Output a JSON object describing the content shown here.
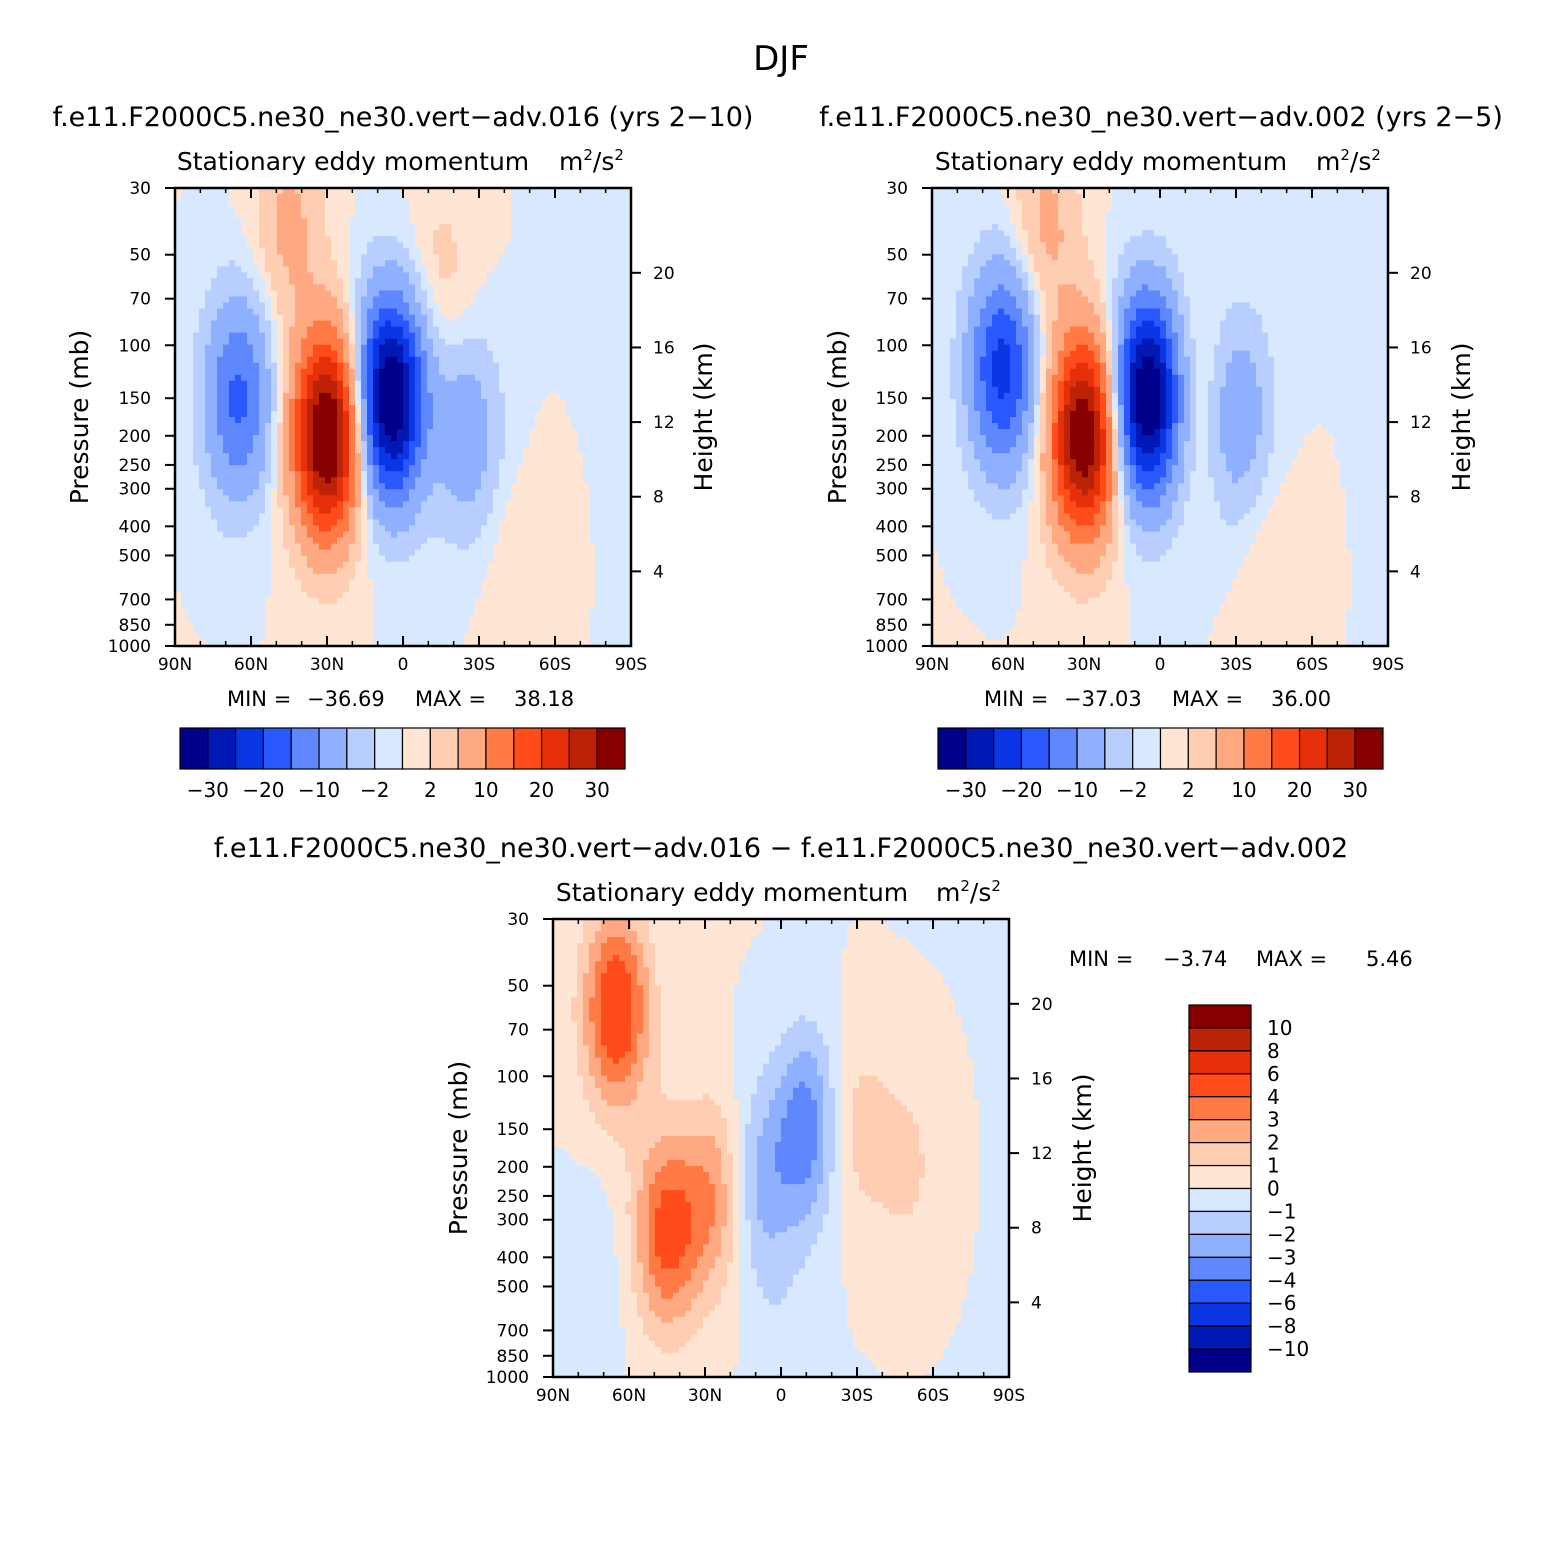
{
  "figure_title": "DJF",
  "chart_data": [
    {
      "type": "heatmap",
      "title": "f.e11.F2000C5.ne30_ne30.vert−adv.016 (yrs 2−10)",
      "subtitle": "Stationary eddy momentum",
      "units_base": "m",
      "units_mid": "/s",
      "units_exp": "2",
      "xlabel": "",
      "ylabel": "Pressure (mb)",
      "y2label": "Height (km)",
      "x_tick_labels": [
        "90N",
        "60N",
        "30N",
        "0",
        "30S",
        "60S",
        "90S"
      ],
      "y_tick_values": [
        30,
        50,
        70,
        100,
        150,
        200,
        250,
        300,
        400,
        500,
        700,
        850,
        1000
      ],
      "y2_tick_values": [
        20,
        16,
        12,
        8,
        4
      ],
      "y_scale": "log",
      "ylim": [
        1000,
        30
      ],
      "stats": {
        "min_label": "MIN =",
        "min_value": "−36.69",
        "max_label": "MAX =",
        "max_value": "38.18"
      },
      "colorbar": {
        "orientation": "horizontal",
        "labels": [
          "−30",
          "−20",
          "−10",
          "−2",
          "2",
          "10",
          "20",
          "30"
        ],
        "colors": [
          "#00008a",
          "#0018b4",
          "#0a36e6",
          "#2958ff",
          "#5f88ff",
          "#8fb0ff",
          "#b8ceff",
          "#d8e8ff",
          "#ffe6d4",
          "#ffcdb2",
          "#ffa982",
          "#ff7a45",
          "#ff4c1a",
          "#e6300a",
          "#bb2206",
          "#870000"
        ]
      },
      "features": [
        {
          "lat": -65,
          "p": 150,
          "v": -16
        },
        {
          "lat": -30,
          "p": 200,
          "v": 38
        },
        {
          "lat": -5,
          "p": 150,
          "v": -37
        },
        {
          "lat": 25,
          "p": 200,
          "v": -8
        },
        {
          "lat": -45,
          "p": 40,
          "v": 6
        },
        {
          "lat": 15,
          "p": 60,
          "v": 3
        },
        {
          "lat": 45,
          "p": 600,
          "v": 2
        }
      ]
    },
    {
      "type": "heatmap",
      "title": "f.e11.F2000C5.ne30_ne30.vert−adv.002 (yrs 2−5)",
      "subtitle": "Stationary eddy momentum",
      "units_base": "m",
      "units_mid": "/s",
      "units_exp": "2",
      "xlabel": "",
      "ylabel": "Pressure (mb)",
      "y2label": "Height (km)",
      "x_tick_labels": [
        "90N",
        "60N",
        "30N",
        "0",
        "30S",
        "60S",
        "90S"
      ],
      "y_tick_values": [
        30,
        50,
        70,
        100,
        150,
        200,
        250,
        300,
        400,
        500,
        700,
        850,
        1000
      ],
      "y2_tick_values": [
        20,
        16,
        12,
        8,
        4
      ],
      "y_scale": "log",
      "ylim": [
        1000,
        30
      ],
      "stats": {
        "min_label": "MIN =",
        "min_value": "−37.03",
        "max_label": "MAX =",
        "max_value": "36.00"
      },
      "colorbar": {
        "orientation": "horizontal",
        "labels": [
          "−30",
          "−20",
          "−10",
          "−2",
          "2",
          "10",
          "20",
          "30"
        ],
        "colors": [
          "#00008a",
          "#0018b4",
          "#0a36e6",
          "#2958ff",
          "#5f88ff",
          "#8fb0ff",
          "#b8ceff",
          "#d8e8ff",
          "#ffe6d4",
          "#ffcdb2",
          "#ffa982",
          "#ff7a45",
          "#ff4c1a",
          "#e6300a",
          "#bb2206",
          "#870000"
        ]
      },
      "features": [
        {
          "lat": -62,
          "p": 120,
          "v": -22
        },
        {
          "lat": -30,
          "p": 200,
          "v": 36
        },
        {
          "lat": -5,
          "p": 150,
          "v": -37
        },
        {
          "lat": 30,
          "p": 170,
          "v": -9
        },
        {
          "lat": -45,
          "p": 40,
          "v": 6
        },
        {
          "lat": 15,
          "p": 150,
          "v": 4
        },
        {
          "lat": 45,
          "p": 600,
          "v": 2
        }
      ]
    },
    {
      "type": "heatmap",
      "title": "f.e11.F2000C5.ne30_ne30.vert−adv.016 − f.e11.F2000C5.ne30_ne30.vert−adv.002",
      "subtitle": "Stationary eddy momentum",
      "units_base": "m",
      "units_mid": "/s",
      "units_exp": "2",
      "xlabel": "",
      "ylabel": "Pressure (mb)",
      "y2label": "Height (km)",
      "x_tick_labels": [
        "90N",
        "60N",
        "30N",
        "0",
        "30S",
        "60S",
        "90S"
      ],
      "y_tick_values": [
        30,
        50,
        70,
        100,
        150,
        200,
        250,
        300,
        400,
        500,
        700,
        850,
        1000
      ],
      "y2_tick_values": [
        20,
        16,
        12,
        8,
        4
      ],
      "y_scale": "log",
      "ylim": [
        1000,
        30
      ],
      "stats": {
        "min_label": "MIN =",
        "min_value": "−3.74",
        "max_label": "MAX =",
        "max_value": "5.46"
      },
      "colorbar": {
        "orientation": "vertical",
        "labels": [
          "10",
          "8",
          "6",
          "4",
          "3",
          "2",
          "1",
          "0",
          "−1",
          "−2",
          "−3",
          "−4",
          "−6",
          "−8",
          "−10"
        ],
        "colors": [
          "#870000",
          "#bb2206",
          "#e6300a",
          "#ff4c1a",
          "#ff7a45",
          "#ffa982",
          "#ffcdb2",
          "#ffe6d4",
          "#d8e8ff",
          "#b8ceff",
          "#8fb0ff",
          "#5f88ff",
          "#2958ff",
          "#0a36e6",
          "#0018b4",
          "#00008a"
        ]
      },
      "features": [
        {
          "lat": -65,
          "p": 60,
          "v": 5.3
        },
        {
          "lat": -45,
          "p": 330,
          "v": 4.5
        },
        {
          "lat": -25,
          "p": 250,
          "v": 3
        },
        {
          "lat": 10,
          "p": 150,
          "v": -3.7
        },
        {
          "lat": -10,
          "p": 230,
          "v": -2.5
        },
        {
          "lat": 30,
          "p": 150,
          "v": 1.5
        },
        {
          "lat": 50,
          "p": 200,
          "v": 1.2
        },
        {
          "lat": -75,
          "p": 500,
          "v": -0.8
        },
        {
          "lat": 0,
          "p": 600,
          "v": -0.6
        }
      ]
    }
  ]
}
